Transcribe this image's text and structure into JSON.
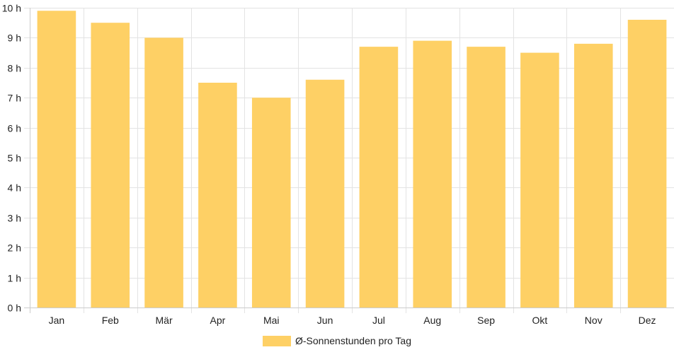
{
  "chart_data": {
    "type": "bar",
    "categories": [
      "Jan",
      "Feb",
      "Mär",
      "Apr",
      "Mai",
      "Jun",
      "Jul",
      "Aug",
      "Sep",
      "Okt",
      "Nov",
      "Dez"
    ],
    "series": [
      {
        "name": "Ø-Sonnenstunden pro Tag",
        "values": [
          9.9,
          9.5,
          9.0,
          7.5,
          7.0,
          7.6,
          8.7,
          8.9,
          8.7,
          8.5,
          8.8,
          9.6
        ],
        "color": "#fed065"
      }
    ],
    "ylim": [
      0,
      10
    ],
    "yticks": [
      0,
      1,
      2,
      3,
      4,
      5,
      6,
      7,
      8,
      9,
      10
    ],
    "ytick_suffix": " h",
    "grid": true,
    "legend_position": "bottom"
  }
}
